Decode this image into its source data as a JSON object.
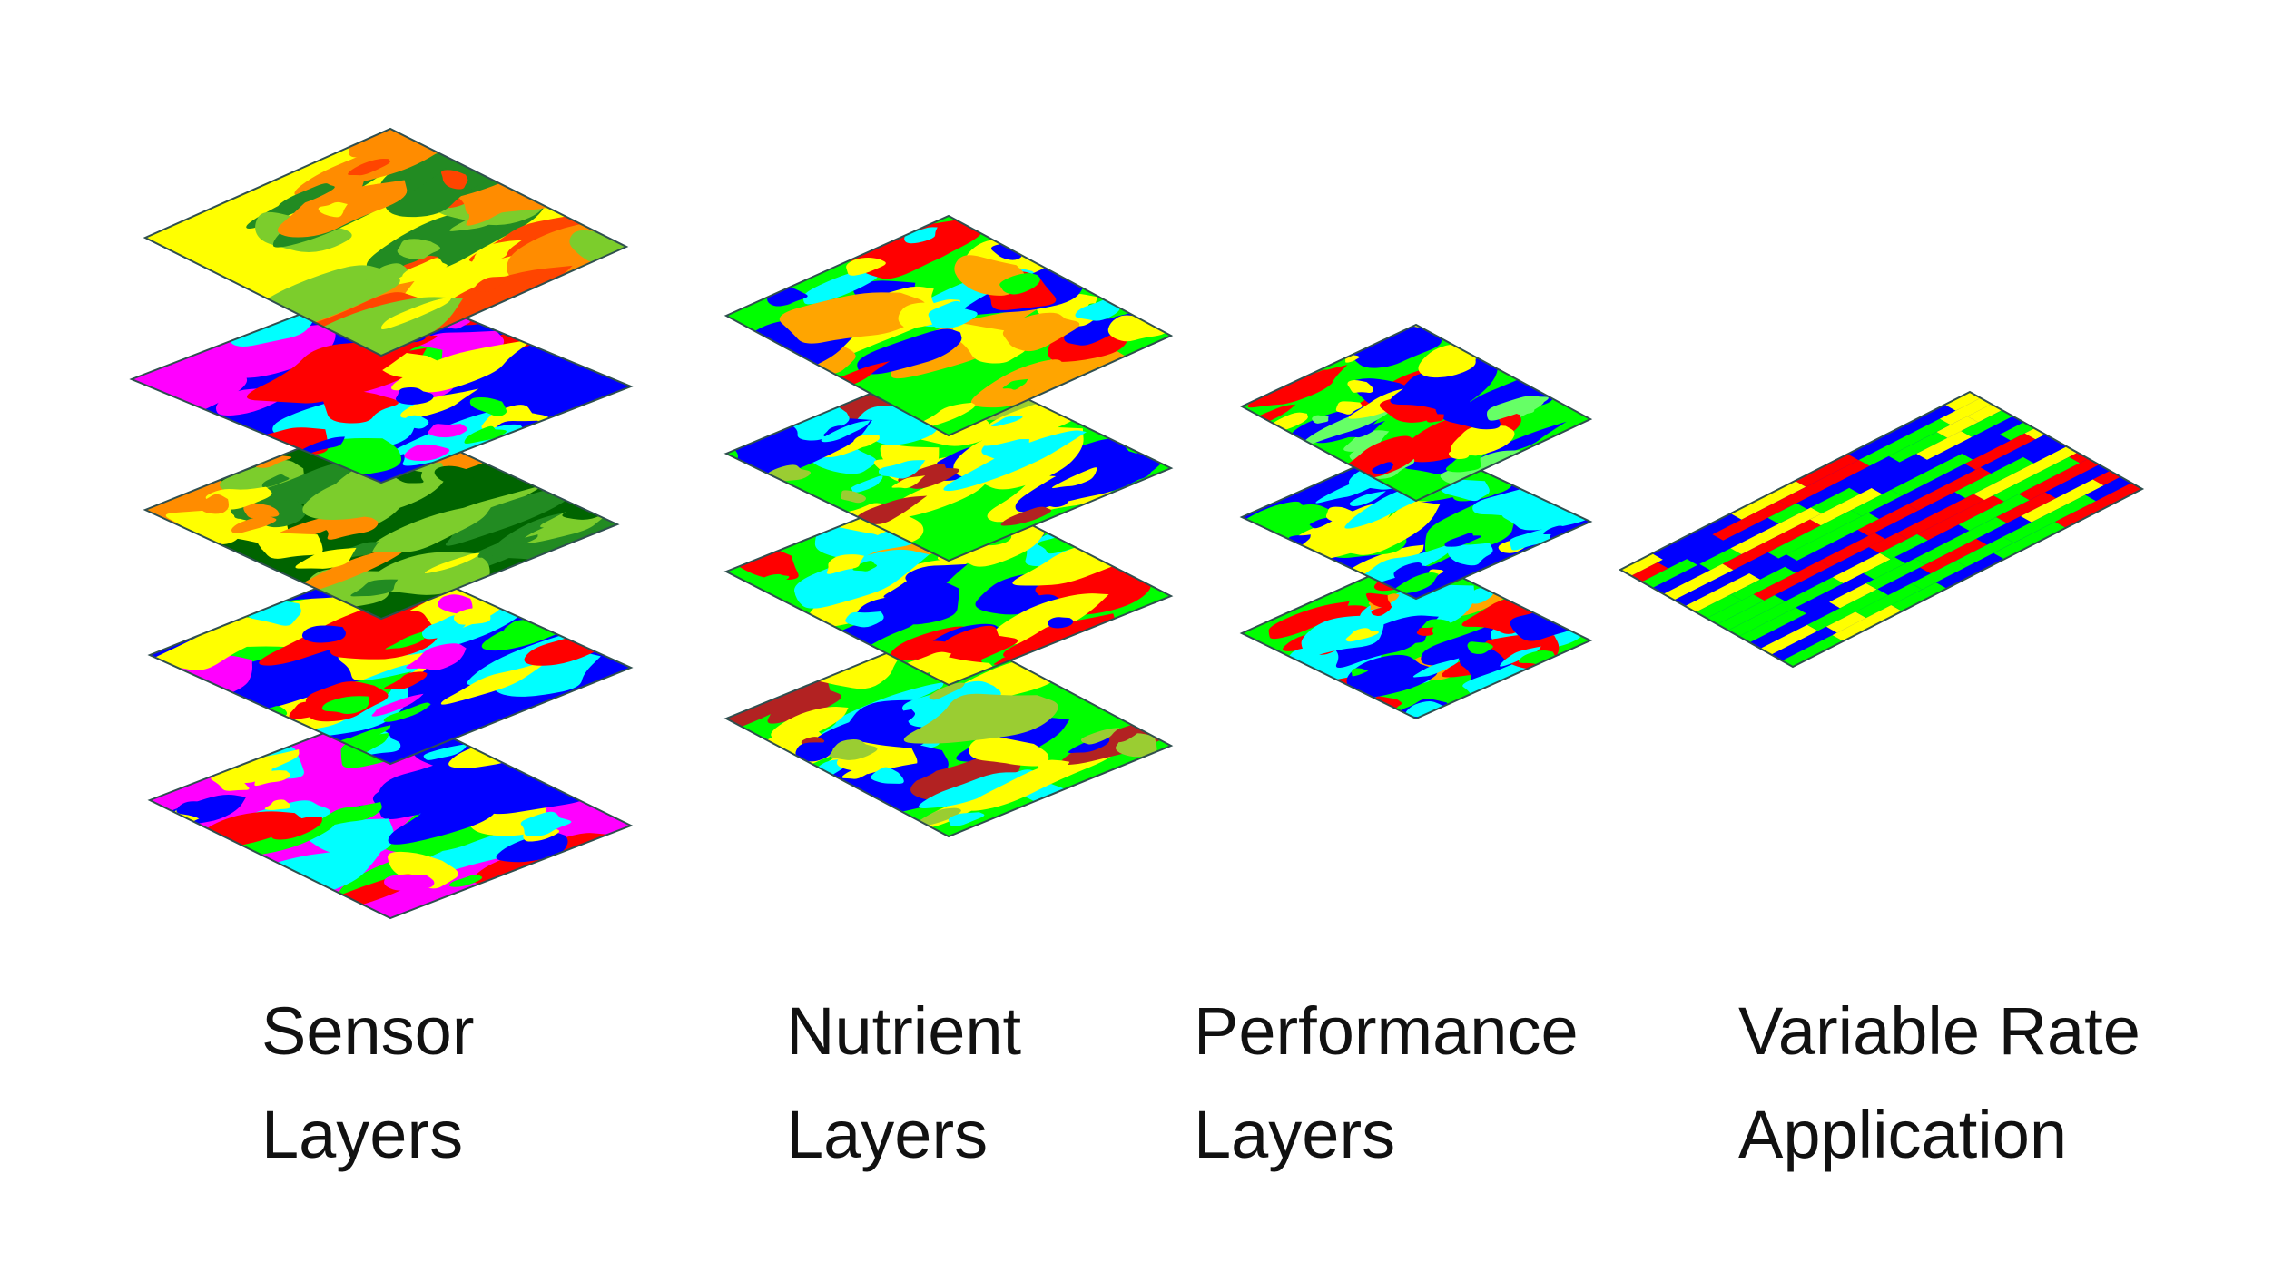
{
  "groups": [
    {
      "id": "sensor",
      "line1": "Sensor",
      "line2": "Layers",
      "layers": [
        {
          "name": "sensor-layer-1",
          "palette": "warm"
        },
        {
          "name": "sensor-layer-2",
          "palette": "vivid"
        },
        {
          "name": "sensor-layer-3",
          "palette": "green"
        },
        {
          "name": "sensor-layer-4",
          "palette": "vivid"
        },
        {
          "name": "sensor-layer-5",
          "palette": "magenta"
        }
      ]
    },
    {
      "id": "nutrient",
      "line1": "Nutrient",
      "line2": "Layers",
      "layers": [
        {
          "name": "nutrient-layer-1",
          "palette": "cool"
        },
        {
          "name": "nutrient-layer-2",
          "palette": "brown"
        },
        {
          "name": "nutrient-layer-3",
          "palette": "cool"
        },
        {
          "name": "nutrient-layer-4",
          "palette": "brown"
        }
      ]
    },
    {
      "id": "performance",
      "line1": "Performance",
      "line2": "Layers",
      "layers": [
        {
          "name": "performance-layer-1",
          "palette": "lime"
        },
        {
          "name": "performance-layer-2",
          "palette": "blue"
        },
        {
          "name": "performance-layer-3",
          "palette": "cool"
        }
      ]
    },
    {
      "id": "variable-rate",
      "line1": "Variable Rate",
      "line2": "Application",
      "layers": [
        {
          "name": "variable-rate-layer",
          "palette": "stripes"
        }
      ]
    }
  ],
  "palettes": {
    "warm": [
      "#ffff00",
      "#ff8c00",
      "#228b22",
      "#7ccd2c",
      "#ff4500"
    ],
    "vivid": [
      "#0000ff",
      "#00ffff",
      "#ff0000",
      "#ff00ff",
      "#ffff00",
      "#00ff00"
    ],
    "green": [
      "#006400",
      "#228b22",
      "#7ccd2c",
      "#ffff00",
      "#ff8c00"
    ],
    "magenta": [
      "#ff00ff",
      "#ff0000",
      "#ffff00",
      "#00ffff",
      "#0000ff",
      "#00ff00"
    ],
    "cool": [
      "#00ff00",
      "#0000ff",
      "#00ffff",
      "#ffff00",
      "#ff0000",
      "#ffa500"
    ],
    "brown": [
      "#00ff00",
      "#ffff00",
      "#b22222",
      "#00ffff",
      "#0000ff",
      "#9acd32"
    ],
    "lime": [
      "#00ff00",
      "#ffff00",
      "#66ff66",
      "#ff0000",
      "#0000ff"
    ],
    "blue": [
      "#0000ff",
      "#00ffff",
      "#00ff00",
      "#ffff00"
    ],
    "stripes": [
      "#0000ff",
      "#00ff00",
      "#ffff00",
      "#ff0000"
    ]
  }
}
